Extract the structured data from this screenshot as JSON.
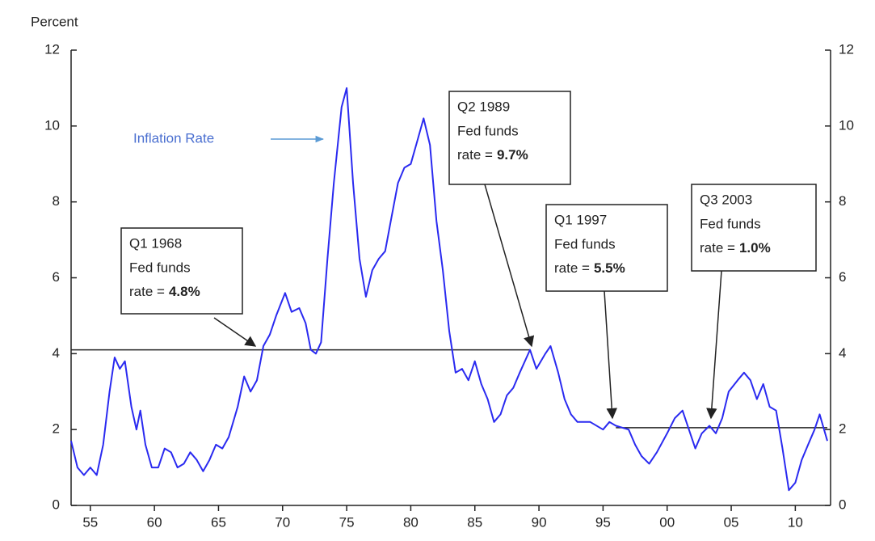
{
  "chart_data": {
    "type": "line",
    "y_axis_label": "Percent",
    "xlim": [
      1953.5,
      2012.75
    ],
    "xticks": [
      {
        "value": 1955,
        "label": "55"
      },
      {
        "value": 1960,
        "label": "60"
      },
      {
        "value": 1965,
        "label": "65"
      },
      {
        "value": 1970,
        "label": "70"
      },
      {
        "value": 1975,
        "label": "75"
      },
      {
        "value": 1980,
        "label": "80"
      },
      {
        "value": 1985,
        "label": "85"
      },
      {
        "value": 1990,
        "label": "90"
      },
      {
        "value": 1995,
        "label": "95"
      },
      {
        "value": 2000,
        "label": "00"
      },
      {
        "value": 2005,
        "label": "05"
      },
      {
        "value": 2010,
        "label": "10"
      }
    ],
    "ylim": [
      0,
      12
    ],
    "yticks": [
      0,
      2,
      4,
      6,
      8,
      10,
      12
    ],
    "y2lim": [
      0,
      12
    ],
    "y2ticks": [
      0,
      2,
      4,
      6,
      8,
      10,
      12
    ],
    "x": [
      1953.5,
      1954.0,
      1954.5,
      1955.0,
      1955.5,
      1956.0,
      1956.5,
      1956.9,
      1957.3,
      1957.7,
      1958.2,
      1958.6,
      1958.9,
      1959.3,
      1959.8,
      1960.3,
      1960.8,
      1961.3,
      1961.8,
      1962.3,
      1962.8,
      1963.3,
      1963.8,
      1964.3,
      1964.8,
      1965.3,
      1965.8,
      1966.5,
      1967.0,
      1967.5,
      1968.0,
      1968.5,
      1969.0,
      1969.5,
      1970.2,
      1970.7,
      1971.3,
      1971.8,
      1972.2,
      1972.6,
      1973.0,
      1973.5,
      1974.0,
      1974.6,
      1975.0,
      1975.5,
      1976.0,
      1976.5,
      1977.0,
      1977.5,
      1978.0,
      1978.5,
      1979.0,
      1979.5,
      1980.0,
      1980.5,
      1981.0,
      1981.5,
      1982.0,
      1982.5,
      1983.0,
      1983.5,
      1984.0,
      1984.5,
      1985.0,
      1985.5,
      1986.0,
      1986.5,
      1987.0,
      1987.5,
      1988.0,
      1988.5,
      1989.3,
      1989.8,
      1990.5,
      1990.9,
      1991.5,
      1992.0,
      1992.5,
      1993.0,
      1994.0,
      1995.0,
      1995.5,
      1996.0,
      1997.0,
      1997.5,
      1998.0,
      1998.6,
      1999.2,
      2000.0,
      2000.6,
      2001.2,
      2001.7,
      2002.2,
      2002.7,
      2003.3,
      2003.8,
      2004.3,
      2004.8,
      2005.5,
      2006.0,
      2006.5,
      2007.0,
      2007.5,
      2008.0,
      2008.5,
      2009.0,
      2009.5,
      2010.0,
      2010.5,
      2011.0,
      2011.5,
      2011.9,
      2012.5
    ],
    "series": [
      {
        "name": "Inflation Rate",
        "color": "#2a2af0",
        "values": [
          1.7,
          1.0,
          0.8,
          1.0,
          0.8,
          1.6,
          3.0,
          3.9,
          3.6,
          3.8,
          2.6,
          2.0,
          2.5,
          1.6,
          1.0,
          1.0,
          1.5,
          1.4,
          1.0,
          1.1,
          1.4,
          1.2,
          0.9,
          1.2,
          1.6,
          1.5,
          1.8,
          2.6,
          3.4,
          3.0,
          3.3,
          4.2,
          4.5,
          5.0,
          5.6,
          5.1,
          5.2,
          4.8,
          4.1,
          4.0,
          4.3,
          6.5,
          8.5,
          10.5,
          11.0,
          8.5,
          6.5,
          5.5,
          6.2,
          6.5,
          6.7,
          7.6,
          8.5,
          8.9,
          9.0,
          9.6,
          10.2,
          9.5,
          7.5,
          6.2,
          4.6,
          3.5,
          3.6,
          3.3,
          3.8,
          3.2,
          2.8,
          2.2,
          2.4,
          2.9,
          3.1,
          3.5,
          4.1,
          3.6,
          4.0,
          4.2,
          3.5,
          2.8,
          2.4,
          2.2,
          2.2,
          2.0,
          2.2,
          2.1,
          2.0,
          1.6,
          1.3,
          1.1,
          1.4,
          1.9,
          2.3,
          2.5,
          2.0,
          1.5,
          1.9,
          2.1,
          1.9,
          2.3,
          3.0,
          3.3,
          3.5,
          3.3,
          2.8,
          3.2,
          2.6,
          2.5,
          1.5,
          0.4,
          0.6,
          1.2,
          1.6,
          2.0,
          2.4,
          1.7
        ]
      }
    ],
    "reference_lines": [
      {
        "value": 4.1,
        "x": [
          1953.5,
          1989.3
        ]
      },
      {
        "value": 2.05,
        "x": [
          1996.0,
          2012.5
        ]
      }
    ],
    "annotations": [
      {
        "lines": [
          "Q1 1968",
          "Fed funds"
        ],
        "rate_prefix": "rate =",
        "rate": "4.8%"
      },
      {
        "lines": [
          "Q2 1989",
          "Fed funds"
        ],
        "rate_prefix": "rate =",
        "rate": "9.7%"
      },
      {
        "lines": [
          "Q1 1997",
          "Fed funds"
        ],
        "rate_prefix": "rate =",
        "rate": "5.5%"
      },
      {
        "lines": [
          "Q3 2003",
          "Fed funds"
        ],
        "rate_prefix": "rate =",
        "rate": "1.0%"
      }
    ]
  }
}
